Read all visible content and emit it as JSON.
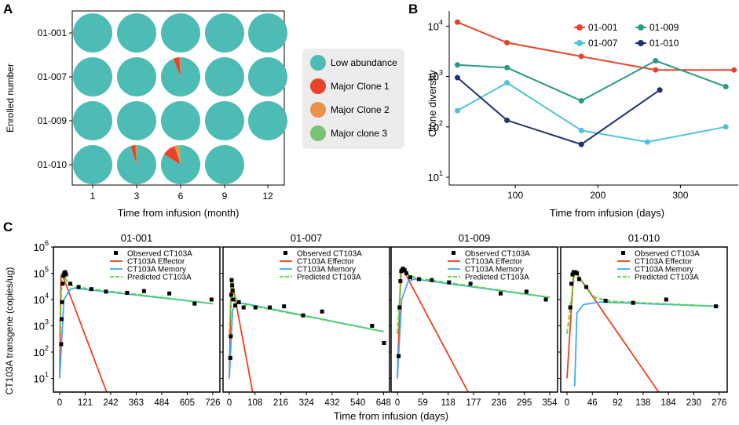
{
  "colors": {
    "teal": "#4dbcb4",
    "red": "#e8442a",
    "orange": "#e8924a",
    "green": "#79c272",
    "s1": "#e8442a",
    "s2": "#2a9a85",
    "s3": "#4fc3da",
    "s4": "#1f3270",
    "c_effector": "#f04020",
    "c_memory": "#3fa9f5",
    "c_predicted": "#55dd33"
  },
  "chart_data": [
    {
      "panel": "A",
      "type": "pie",
      "xlabel": "Time from infusion (month)",
      "ylabel": "Enrolled number",
      "columns": [
        "1",
        "3",
        "6",
        "9",
        "12"
      ],
      "rows": [
        "01-001",
        "01-007",
        "01-009",
        "01-010"
      ],
      "legend": [
        "Low abundance",
        "Major Clone 1",
        "Major Clone 2",
        "Major clone 3"
      ],
      "cells": [
        {
          "row": 0,
          "col": 0,
          "slices": [
            100,
            0,
            0,
            0
          ]
        },
        {
          "row": 0,
          "col": 1,
          "slices": [
            100,
            0,
            0,
            0
          ]
        },
        {
          "row": 0,
          "col": 2,
          "slices": [
            100,
            0,
            0,
            0
          ]
        },
        {
          "row": 0,
          "col": 3,
          "slices": [
            100,
            0,
            0,
            0
          ]
        },
        {
          "row": 0,
          "col": 4,
          "slices": [
            100,
            0,
            0,
            0
          ]
        },
        {
          "row": 1,
          "col": 0,
          "slices": [
            100,
            0,
            0,
            0
          ]
        },
        {
          "row": 1,
          "col": 1,
          "slices": [
            100,
            0,
            0,
            0
          ]
        },
        {
          "row": 1,
          "col": 2,
          "slices": [
            94,
            5,
            1,
            0
          ]
        },
        {
          "row": 1,
          "col": 3,
          "slices": [
            100,
            0,
            0,
            0
          ]
        },
        {
          "row": 1,
          "col": 4,
          "slices": [
            100,
            0,
            0,
            0
          ]
        },
        {
          "row": 2,
          "col": 0,
          "slices": [
            100,
            0,
            0,
            0
          ]
        },
        {
          "row": 2,
          "col": 1,
          "slices": [
            100,
            0,
            0,
            0
          ]
        },
        {
          "row": 2,
          "col": 2,
          "slices": [
            100,
            0,
            0,
            0
          ]
        },
        {
          "row": 2,
          "col": 3,
          "slices": [
            100,
            0,
            0,
            0
          ]
        },
        {
          "row": 2,
          "col": 4,
          "slices": [
            100,
            0,
            0,
            0
          ]
        },
        {
          "row": 3,
          "col": 0,
          "slices": [
            100,
            0,
            0,
            0
          ]
        },
        {
          "row": 3,
          "col": 1,
          "slices": [
            95,
            4,
            1,
            0
          ]
        },
        {
          "row": 3,
          "col": 2,
          "slices": [
            84,
            11,
            3,
            2
          ]
        },
        {
          "row": 3,
          "col": 3,
          "slices": [
            100,
            0,
            0,
            0
          ]
        }
      ]
    },
    {
      "panel": "B",
      "type": "line",
      "xlabel": "Time from infusion (days)",
      "ylabel": "Clone diversity",
      "yscale": "log",
      "xlim": [
        20,
        370
      ],
      "ylim": [
        7,
        20000
      ],
      "xticks": [
        100,
        200,
        300
      ],
      "yticks": [
        10,
        100,
        1000,
        10000
      ],
      "series": [
        {
          "name": "01-001",
          "x": [
            30,
            90,
            180,
            270,
            365
          ],
          "y": [
            12000,
            4700,
            2500,
            1350,
            1350
          ]
        },
        {
          "name": "01-009",
          "x": [
            30,
            90,
            180,
            270,
            355
          ],
          "y": [
            1700,
            1500,
            330,
            2050,
            630
          ]
        },
        {
          "name": "01-007",
          "x": [
            30,
            90,
            180,
            260,
            355
          ],
          "y": [
            210,
            750,
            85,
            50,
            100
          ]
        },
        {
          "name": "01-010",
          "x": [
            30,
            90,
            180,
            275
          ],
          "y": [
            950,
            135,
            45,
            540
          ]
        }
      ]
    },
    {
      "panel": "C",
      "type": "line",
      "yscale": "log",
      "xlabel": "Time from infusion (days)",
      "ylabel": "CT103A transgene (copies/ug)",
      "ylim": [
        3,
        1000000
      ],
      "legend": [
        "Observed CT103A",
        "CT103A Effector",
        "CT103A Memory",
        "Predicted CT103A"
      ],
      "subplots": [
        {
          "title": "01-001",
          "xmax": 745,
          "xticks": [
            0,
            121,
            242,
            363,
            484,
            605,
            726
          ],
          "observed": [
            [
              7,
              200
            ],
            [
              9,
              1800
            ],
            [
              11,
              8000
            ],
            [
              14,
              40000
            ],
            [
              18,
              80000
            ],
            [
              22,
              100000
            ],
            [
              26,
              110000
            ],
            [
              30,
              90000
            ],
            [
              50,
              40000
            ],
            [
              90,
              30000
            ],
            [
              150,
              25000
            ],
            [
              220,
              20000
            ],
            [
              320,
              18000
            ],
            [
              400,
              21000
            ],
            [
              520,
              17000
            ],
            [
              640,
              7000
            ],
            [
              720,
              10000
            ]
          ],
          "effector": [
            [
              0,
              10
            ],
            [
              6,
              80000
            ],
            [
              12,
              90000
            ],
            [
              245,
              1
            ]
          ],
          "memory": [
            [
              0,
              10
            ],
            [
              20,
              10000
            ],
            [
              50,
              25000
            ],
            [
              70,
              27000
            ],
            [
              726,
              7000
            ]
          ],
          "predicted": [
            [
              0,
              500
            ],
            [
              12,
              90000
            ],
            [
              40,
              45000
            ],
            [
              70,
              30000
            ],
            [
              726,
              7000
            ]
          ]
        },
        {
          "title": "01-007",
          "xmax": 660,
          "xticks": [
            0,
            108,
            216,
            324,
            432,
            540,
            648
          ],
          "observed": [
            [
              4,
              60
            ],
            [
              6,
              400
            ],
            [
              8,
              15000
            ],
            [
              10,
              55000
            ],
            [
              12,
              35000
            ],
            [
              14,
              22000
            ],
            [
              16,
              10000
            ],
            [
              25,
              6000
            ],
            [
              40,
              8000
            ],
            [
              60,
              5000
            ],
            [
              110,
              5000
            ],
            [
              170,
              5000
            ],
            [
              230,
              5500
            ],
            [
              310,
              2500
            ],
            [
              390,
              3500
            ],
            [
              600,
              1000
            ],
            [
              650,
              220
            ]
          ],
          "effector": [
            [
              0,
              10
            ],
            [
              8,
              50000
            ],
            [
              12,
              45000
            ],
            [
              108,
              1
            ]
          ],
          "memory": [
            [
              0,
              10
            ],
            [
              14,
              4000
            ],
            [
              30,
              7000
            ],
            [
              60,
              7200
            ],
            [
              648,
              600
            ]
          ],
          "predicted": [
            [
              0,
              500
            ],
            [
              10,
              60000
            ],
            [
              25,
              12000
            ],
            [
              50,
              7000
            ],
            [
              648,
              600
            ]
          ]
        },
        {
          "title": "01-009",
          "xmax": 365,
          "xticks": [
            0,
            59,
            118,
            177,
            236,
            295,
            354
          ],
          "observed": [
            [
              3,
              70
            ],
            [
              5,
              5000
            ],
            [
              7,
              50000
            ],
            [
              9,
              120000
            ],
            [
              11,
              130000
            ],
            [
              13,
              150000
            ],
            [
              17,
              130000
            ],
            [
              21,
              100000
            ],
            [
              30,
              70000
            ],
            [
              50,
              60000
            ],
            [
              80,
              55000
            ],
            [
              120,
              45000
            ],
            [
              170,
              40000
            ],
            [
              240,
              17000
            ],
            [
              300,
              20000
            ],
            [
              345,
              10000
            ]
          ],
          "effector": [
            [
              0,
              10
            ],
            [
              8,
              140000
            ],
            [
              14,
              130000
            ],
            [
              180,
              1
            ]
          ],
          "memory": [
            [
              0,
              10
            ],
            [
              10,
              10000
            ],
            [
              25,
              50000
            ],
            [
              40,
              60000
            ],
            [
              354,
              12000
            ]
          ],
          "predicted": [
            [
              0,
              500
            ],
            [
              10,
              150000
            ],
            [
              25,
              90000
            ],
            [
              45,
              65000
            ],
            [
              354,
              12000
            ]
          ]
        },
        {
          "title": "01-010",
          "xmax": 285,
          "xticks": [
            0,
            46,
            92,
            138,
            184,
            230,
            276
          ],
          "observed": [
            [
              6,
              5000
            ],
            [
              8,
              40000
            ],
            [
              10,
              90000
            ],
            [
              12,
              110000
            ],
            [
              15,
              110000
            ],
            [
              18,
              100000
            ],
            [
              22,
              60000
            ],
            [
              35,
              30000
            ],
            [
              70,
              9000
            ],
            [
              120,
              7500
            ],
            [
              180,
              10000
            ],
            [
              270,
              5500
            ]
          ],
          "effector": [
            [
              0,
              10
            ],
            [
              12,
              100000
            ],
            [
              16,
              110000
            ],
            [
              182,
              1
            ]
          ],
          "memory": [
            [
              14,
              5
            ],
            [
              18,
              3000
            ],
            [
              30,
              6500
            ],
            [
              60,
              8000
            ],
            [
              276,
              5500
            ]
          ],
          "predicted": [
            [
              0,
              500
            ],
            [
              14,
              110000
            ],
            [
              30,
              40000
            ],
            [
              50,
              12000
            ],
            [
              80,
              8500
            ],
            [
              276,
              5500
            ]
          ]
        }
      ]
    }
  ]
}
